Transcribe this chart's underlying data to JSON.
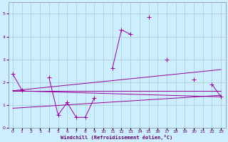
{
  "x_all": [
    0,
    1,
    2,
    3,
    4,
    5,
    6,
    7,
    8,
    9,
    10,
    11,
    12,
    13,
    14,
    15,
    16,
    17,
    18,
    19,
    20,
    21,
    22,
    23
  ],
  "series_main": [
    2.35,
    1.65,
    null,
    null,
    2.2,
    0.55,
    1.1,
    0.45,
    0.45,
    1.3,
    null,
    2.6,
    4.3,
    4.1,
    null,
    4.85,
    null,
    3.0,
    null,
    null,
    2.1,
    null,
    1.9,
    1.35
  ],
  "trend_lines": [
    [
      0.0,
      1.62,
      23.0,
      1.35
    ],
    [
      0.0,
      0.85,
      23.0,
      1.42
    ],
    [
      0.0,
      1.62,
      23.0,
      2.55
    ],
    [
      0.0,
      1.62,
      23.0,
      1.62
    ]
  ],
  "ylim": [
    0,
    5.5
  ],
  "xlim": [
    -0.5,
    23.5
  ],
  "yticks": [
    0,
    1,
    2,
    3,
    4,
    5
  ],
  "xtick_labels": [
    "0",
    "1",
    "2",
    "3",
    "4",
    "5",
    "6",
    "7",
    "8",
    "9",
    "10",
    "11",
    "12",
    "13",
    "14",
    "15",
    "16",
    "17",
    "18",
    "19",
    "20",
    "21",
    "22",
    "23"
  ],
  "xlabel": "Windchill (Refroidissement éolien,°C)",
  "line_color": "#990099",
  "bg_color": "#cceeff",
  "grid_color": "#aacccc",
  "markersize": 2.5,
  "linewidth": 0.7,
  "tick_fontsize": 4.5,
  "xlabel_fontsize": 5.0,
  "tick_color": "#660066",
  "xlabel_color": "#660066"
}
